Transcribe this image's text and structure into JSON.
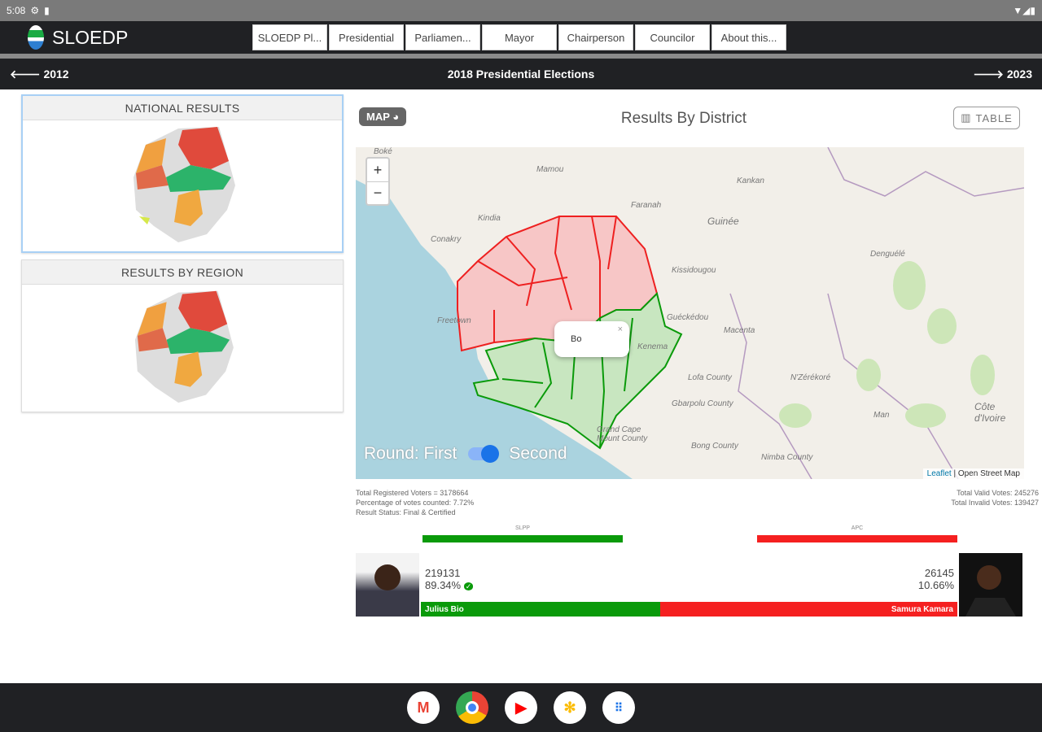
{
  "status_bar": {
    "time": "5:08"
  },
  "app": {
    "name": "SLOEDP"
  },
  "nav_tabs": [
    "SLOEDP Pl...",
    "Presidential",
    "Parliamen...",
    "Mayor",
    "Chairperson",
    "Councilor",
    "About this..."
  ],
  "year_bar": {
    "prev": "2012",
    "title": "2018 Presidential Elections",
    "next": "2023"
  },
  "sidebar": {
    "national": "NATIONAL RESULTS",
    "region": "RESULTS BY REGION"
  },
  "main": {
    "map_button": "MAP",
    "title": "Results By District",
    "table_button": "TABLE"
  },
  "map": {
    "zoom_in": "+",
    "zoom_out": "−",
    "popup": "Bo",
    "popup_close": "×",
    "round_label": "Round: First",
    "round_second": "Second",
    "attrib_leaflet": "Leaflet",
    "attrib_osm": "| Open Street Map",
    "places": [
      "Boké",
      "Mamou",
      "Kindia",
      "Conakry",
      "Freetown",
      "Kankan",
      "Guinée",
      "Faranah",
      "Kissidougou",
      "Guéckédou",
      "Macenta",
      "N'Zérékoré",
      "Lofa County",
      "Gbarpolu County",
      "Bong County",
      "Nimba County",
      "Grand Cape Mount County",
      "Denguélé",
      "Man",
      "Côte d'Ivoire",
      "Kenema"
    ]
  },
  "stats": {
    "registered": "Total Registered Voters = 3178664",
    "percent_counted": "Percentage of votes counted: 7.72%",
    "status": "Result Status: Final & Certified",
    "valid": "Total Valid Votes: 245276",
    "invalid": "Total Invalid Votes: 139427"
  },
  "candidates": [
    {
      "party": "SLPP",
      "name": "Julius Bio",
      "votes": "219131",
      "percent": "89.34%",
      "share": 89.34,
      "color": "#0a9a0a"
    },
    {
      "party": "APC",
      "name": "Samura Kamara",
      "votes": "26145",
      "percent": "10.66%",
      "share": 10.66,
      "color": "#f52020"
    }
  ]
}
